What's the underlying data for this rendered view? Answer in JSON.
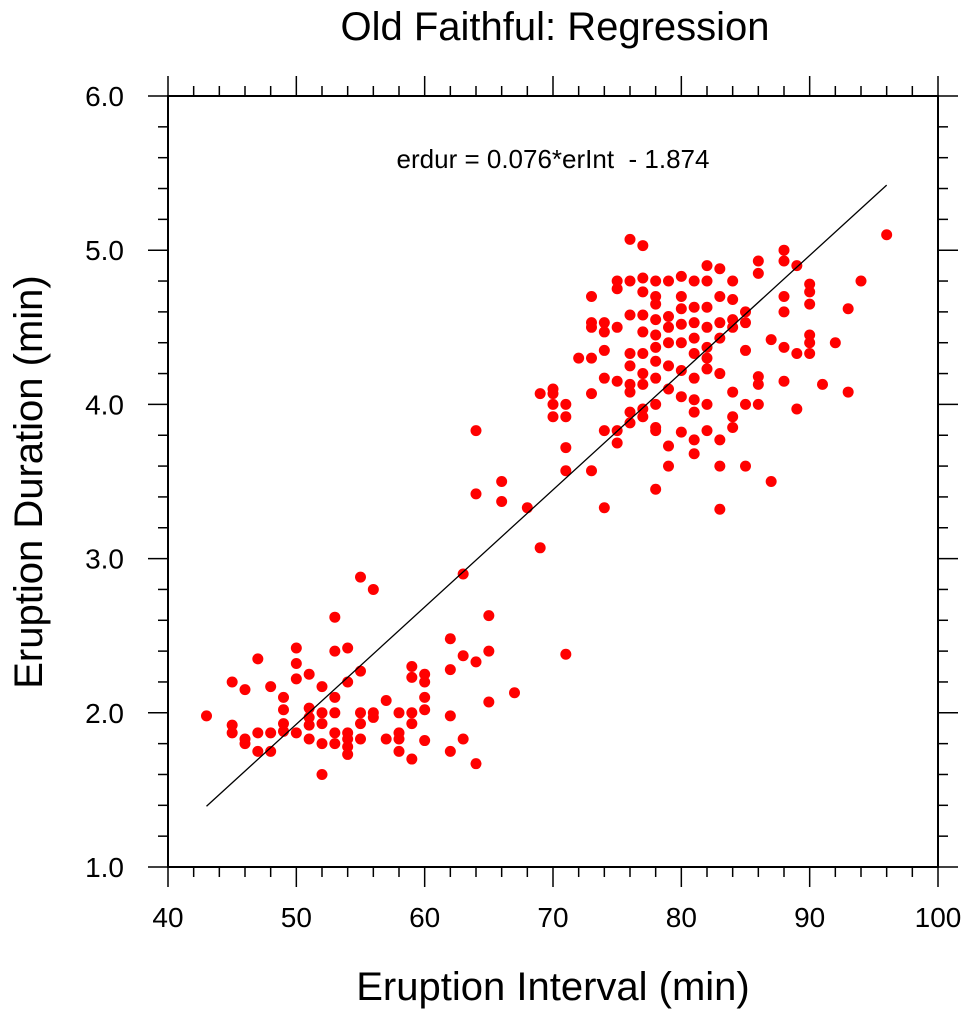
{
  "chart_data": {
    "type": "scatter",
    "title": "Old Faithful: Regression",
    "xlabel": "Eruption Interval (min)",
    "ylabel": "Eruption Duration (min)",
    "xlim": [
      40,
      100
    ],
    "ylim": [
      1.0,
      6.0
    ],
    "xticks": [
      "40",
      "50",
      "60",
      "70",
      "80",
      "90",
      "100"
    ],
    "yticks": [
      "1.0",
      "2.0",
      "3.0",
      "4.0",
      "5.0",
      "6.0"
    ],
    "annotation": "erdur = 0.076*erInt  - 1.874",
    "regression": {
      "slope": 0.076,
      "intercept": -1.874,
      "x_range": [
        43,
        96
      ]
    },
    "marker_color": "#ff0000",
    "line_color": "#000000",
    "points": [
      [
        43,
        1.98
      ],
      [
        45,
        2.2
      ],
      [
        45,
        1.92
      ],
      [
        45,
        1.87
      ],
      [
        46,
        2.15
      ],
      [
        46,
        1.83
      ],
      [
        46,
        1.8
      ],
      [
        47,
        2.35
      ],
      [
        47,
        1.87
      ],
      [
        47,
        1.75
      ],
      [
        48,
        2.17
      ],
      [
        48,
        1.87
      ],
      [
        48,
        1.75
      ],
      [
        49,
        2.1
      ],
      [
        49,
        2.02
      ],
      [
        49,
        1.93
      ],
      [
        49,
        1.88
      ],
      [
        50,
        2.42
      ],
      [
        50,
        2.32
      ],
      [
        50,
        2.22
      ],
      [
        50,
        1.87
      ],
      [
        51,
        2.25
      ],
      [
        51,
        2.03
      ],
      [
        51,
        1.97
      ],
      [
        51,
        1.92
      ],
      [
        51,
        1.83
      ],
      [
        52,
        2.17
      ],
      [
        52,
        2.0
      ],
      [
        52,
        1.93
      ],
      [
        52,
        1.8
      ],
      [
        52,
        1.6
      ],
      [
        53,
        2.62
      ],
      [
        53,
        2.4
      ],
      [
        53,
        2.1
      ],
      [
        53,
        2.0
      ],
      [
        53,
        1.87
      ],
      [
        53,
        1.8
      ],
      [
        54,
        2.42
      ],
      [
        54,
        2.2
      ],
      [
        54,
        1.87
      ],
      [
        54,
        1.83
      ],
      [
        54,
        1.78
      ],
      [
        54,
        1.73
      ],
      [
        55,
        2.88
      ],
      [
        55,
        2.27
      ],
      [
        55,
        2.0
      ],
      [
        55,
        1.93
      ],
      [
        55,
        1.83
      ],
      [
        56,
        2.8
      ],
      [
        56,
        2.0
      ],
      [
        56,
        1.97
      ],
      [
        57,
        2.08
      ],
      [
        57,
        1.83
      ],
      [
        58,
        2.0
      ],
      [
        58,
        1.87
      ],
      [
        58,
        1.83
      ],
      [
        58,
        1.75
      ],
      [
        59,
        2.3
      ],
      [
        59,
        2.23
      ],
      [
        59,
        2.0
      ],
      [
        59,
        1.93
      ],
      [
        59,
        1.7
      ],
      [
        60,
        2.25
      ],
      [
        60,
        2.2
      ],
      [
        60,
        2.1
      ],
      [
        60,
        2.02
      ],
      [
        60,
        1.82
      ],
      [
        62,
        2.48
      ],
      [
        62,
        2.28
      ],
      [
        62,
        1.98
      ],
      [
        62,
        1.75
      ],
      [
        63,
        2.9
      ],
      [
        63,
        2.37
      ],
      [
        63,
        1.83
      ],
      [
        64,
        3.83
      ],
      [
        64,
        3.42
      ],
      [
        64,
        2.33
      ],
      [
        64,
        1.67
      ],
      [
        65,
        2.63
      ],
      [
        65,
        2.4
      ],
      [
        65,
        2.07
      ],
      [
        66,
        3.5
      ],
      [
        66,
        3.37
      ],
      [
        67,
        2.13
      ],
      [
        68,
        3.33
      ],
      [
        69,
        4.07
      ],
      [
        69,
        3.07
      ],
      [
        70,
        4.1
      ],
      [
        70,
        4.07
      ],
      [
        70,
        4.0
      ],
      [
        70,
        3.92
      ],
      [
        71,
        4.0
      ],
      [
        71,
        3.92
      ],
      [
        71,
        3.72
      ],
      [
        71,
        3.57
      ],
      [
        71,
        2.38
      ],
      [
        72,
        4.3
      ],
      [
        73,
        4.7
      ],
      [
        73,
        4.53
      ],
      [
        73,
        4.5
      ],
      [
        73,
        4.3
      ],
      [
        73,
        4.07
      ],
      [
        73,
        3.57
      ],
      [
        74,
        4.53
      ],
      [
        74,
        4.47
      ],
      [
        74,
        4.35
      ],
      [
        74,
        4.17
      ],
      [
        74,
        3.83
      ],
      [
        74,
        3.33
      ],
      [
        75,
        4.8
      ],
      [
        75,
        4.75
      ],
      [
        75,
        4.5
      ],
      [
        75,
        4.15
      ],
      [
        75,
        3.83
      ],
      [
        75,
        3.75
      ],
      [
        76,
        5.07
      ],
      [
        76,
        4.8
      ],
      [
        76,
        4.58
      ],
      [
        76,
        4.33
      ],
      [
        76,
        4.25
      ],
      [
        76,
        4.13
      ],
      [
        76,
        4.08
      ],
      [
        76,
        3.95
      ],
      [
        76,
        3.88
      ],
      [
        77,
        5.03
      ],
      [
        77,
        4.82
      ],
      [
        77,
        4.73
      ],
      [
        77,
        4.58
      ],
      [
        77,
        4.47
      ],
      [
        77,
        4.33
      ],
      [
        77,
        4.2
      ],
      [
        77,
        4.13
      ],
      [
        77,
        3.97
      ],
      [
        77,
        3.92
      ],
      [
        78,
        4.8
      ],
      [
        78,
        4.7
      ],
      [
        78,
        4.65
      ],
      [
        78,
        4.55
      ],
      [
        78,
        4.45
      ],
      [
        78,
        4.37
      ],
      [
        78,
        4.28
      ],
      [
        78,
        4.17
      ],
      [
        78,
        4.0
      ],
      [
        78,
        3.85
      ],
      [
        78,
        3.83
      ],
      [
        78,
        3.45
      ],
      [
        79,
        4.8
      ],
      [
        79,
        4.57
      ],
      [
        79,
        4.5
      ],
      [
        79,
        4.4
      ],
      [
        79,
        4.25
      ],
      [
        79,
        4.1
      ],
      [
        79,
        3.73
      ],
      [
        79,
        3.6
      ],
      [
        80,
        4.83
      ],
      [
        80,
        4.7
      ],
      [
        80,
        4.62
      ],
      [
        80,
        4.52
      ],
      [
        80,
        4.4
      ],
      [
        80,
        4.22
      ],
      [
        80,
        4.05
      ],
      [
        80,
        3.82
      ],
      [
        81,
        4.8
      ],
      [
        81,
        4.63
      ],
      [
        81,
        4.53
      ],
      [
        81,
        4.43
      ],
      [
        81,
        4.33
      ],
      [
        81,
        4.17
      ],
      [
        81,
        4.03
      ],
      [
        81,
        3.95
      ],
      [
        81,
        3.77
      ],
      [
        81,
        3.68
      ],
      [
        82,
        4.9
      ],
      [
        82,
        4.8
      ],
      [
        82,
        4.63
      ],
      [
        82,
        4.5
      ],
      [
        82,
        4.37
      ],
      [
        82,
        4.3
      ],
      [
        82,
        4.23
      ],
      [
        82,
        4.0
      ],
      [
        82,
        3.83
      ],
      [
        83,
        4.88
      ],
      [
        83,
        4.7
      ],
      [
        83,
        4.53
      ],
      [
        83,
        4.43
      ],
      [
        83,
        4.2
      ],
      [
        83,
        3.77
      ],
      [
        83,
        3.6
      ],
      [
        83,
        3.32
      ],
      [
        84,
        4.8
      ],
      [
        84,
        4.68
      ],
      [
        84,
        4.55
      ],
      [
        84,
        4.5
      ],
      [
        84,
        4.08
      ],
      [
        84,
        3.92
      ],
      [
        84,
        3.85
      ],
      [
        85,
        4.6
      ],
      [
        85,
        4.53
      ],
      [
        85,
        4.35
      ],
      [
        85,
        4.0
      ],
      [
        85,
        3.6
      ],
      [
        86,
        4.93
      ],
      [
        86,
        4.85
      ],
      [
        86,
        4.18
      ],
      [
        86,
        4.13
      ],
      [
        86,
        4.0
      ],
      [
        87,
        4.42
      ],
      [
        87,
        3.5
      ],
      [
        88,
        5.0
      ],
      [
        88,
        4.93
      ],
      [
        88,
        4.7
      ],
      [
        88,
        4.6
      ],
      [
        88,
        4.37
      ],
      [
        88,
        4.15
      ],
      [
        89,
        4.9
      ],
      [
        89,
        4.33
      ],
      [
        89,
        3.97
      ],
      [
        90,
        4.78
      ],
      [
        90,
        4.73
      ],
      [
        90,
        4.65
      ],
      [
        90,
        4.45
      ],
      [
        90,
        4.4
      ],
      [
        90,
        4.33
      ],
      [
        91,
        4.13
      ],
      [
        92,
        4.4
      ],
      [
        93,
        4.62
      ],
      [
        93,
        4.08
      ],
      [
        94,
        4.8
      ],
      [
        96,
        5.1
      ]
    ]
  }
}
